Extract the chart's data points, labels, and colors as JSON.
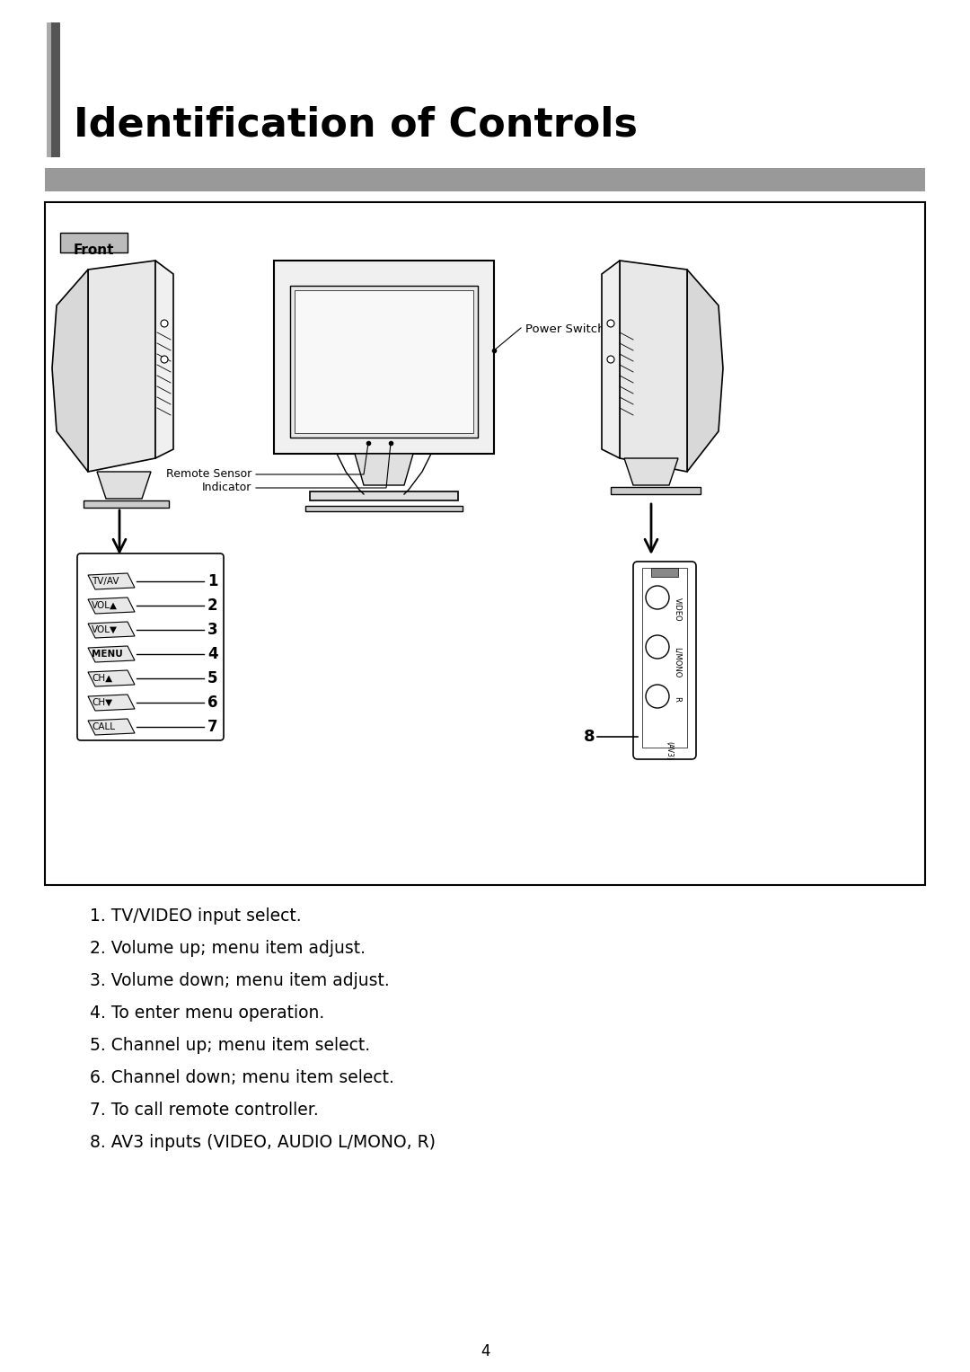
{
  "title": "Identification of Controls",
  "section_label": "Front",
  "page_number": "4",
  "background_color": "#ffffff",
  "title_color": "#000000",
  "title_fontsize": 32,
  "title_fontweight": "bold",
  "gray_bar_color": "#999999",
  "border_color": "#000000",
  "descriptions": [
    "1. TV/VIDEO input select.",
    "2. Volume up; menu item adjust.",
    "3. Volume down; menu item adjust.",
    "4. To enter menu operation.",
    "5. Channel up; menu item select.",
    "6. Channel down; menu item select.",
    "7. To call remote controller.",
    "8. AV3 inputs (VIDEO, AUDIO L/MONO, R)"
  ],
  "button_labels_text": [
    "TV/AV",
    "VOL▲",
    "VOL▼",
    "MENU",
    "CH▲",
    "CH▼",
    "CALL"
  ],
  "button_numbers": [
    "1",
    "2",
    "3",
    "4",
    "5",
    "6",
    "7"
  ],
  "label_remote_sensor": "Remote Sensor",
  "label_indicator": "Indicator",
  "label_power_switch": "Power Switch",
  "label_8": "8",
  "connector_labels": [
    "VIDEO",
    "L/MONO",
    "R"
  ]
}
